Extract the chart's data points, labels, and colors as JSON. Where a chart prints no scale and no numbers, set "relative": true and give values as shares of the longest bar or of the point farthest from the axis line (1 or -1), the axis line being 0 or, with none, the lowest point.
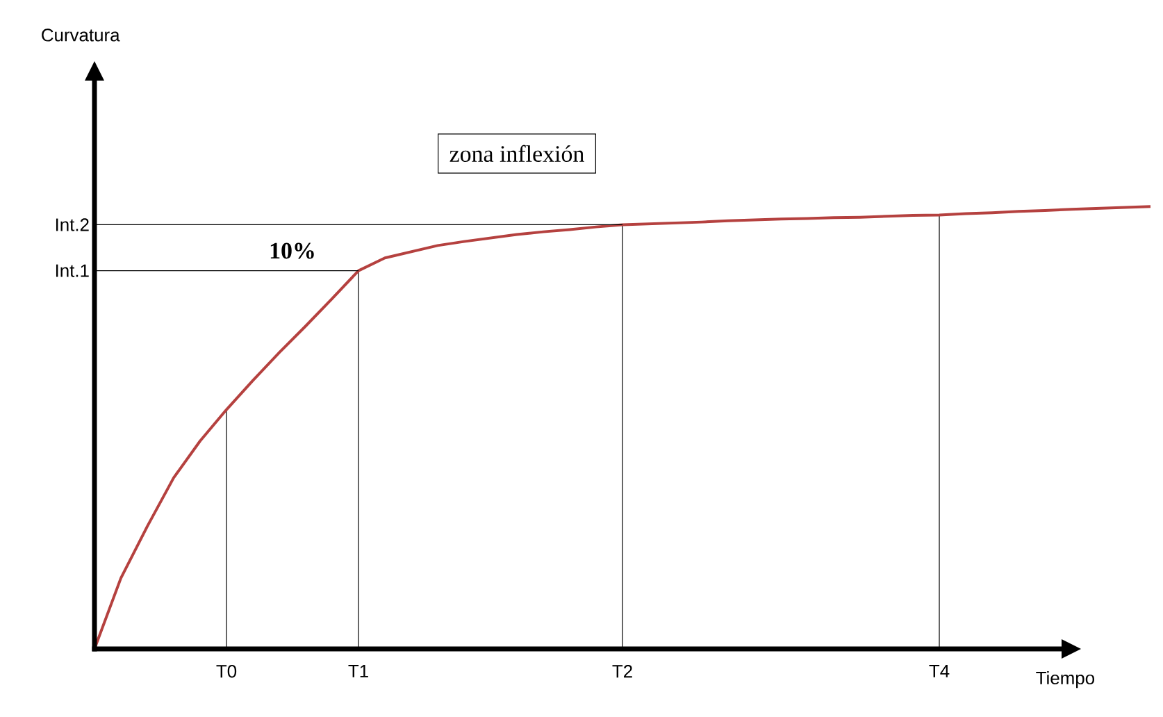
{
  "chart_data": {
    "type": "line",
    "relative": true,
    "xlabel": "Tiempo",
    "grid": "x",
    "annotations": [
      "zona inflexión",
      "**10%**",
      "Curvatura"
    ],
    "ref_lines": [
      {
        "axis": "y",
        "value": 0.855,
        "label": "Int.1"
      },
      {
        "axis": "y",
        "value": 0.959,
        "label": "Int.2"
      }
    ],
    "categories": [
      null,
      null,
      null,
      null,
      null,
      "T0",
      null,
      null,
      null,
      null,
      "T1",
      null,
      null,
      null,
      null,
      null,
      null,
      null,
      null,
      null,
      "T2",
      null,
      null,
      null,
      null,
      null,
      null,
      null,
      null,
      null,
      null,
      null,
      "T4",
      null,
      null,
      null,
      null,
      null,
      null,
      null,
      null
    ],
    "series": [
      {
        "color": "#b5413f",
        "values": [
          0,
          0.16,
          0.277,
          0.387,
          0.47,
          0.541,
          0.607,
          0.67,
          0.73,
          0.792,
          0.855,
          0.884,
          0.898,
          0.912,
          0.921,
          0.929,
          0.937,
          0.943,
          0.948,
          0.954,
          0.959,
          0.961,
          0.963,
          0.965,
          0.968,
          0.97,
          0.972,
          0.973,
          0.975,
          0.976,
          0.978,
          0.98,
          0.981,
          0.984,
          0.986,
          0.989,
          0.991,
          0.994,
          0.996,
          0.998,
          1
        ]
      }
    ]
  }
}
